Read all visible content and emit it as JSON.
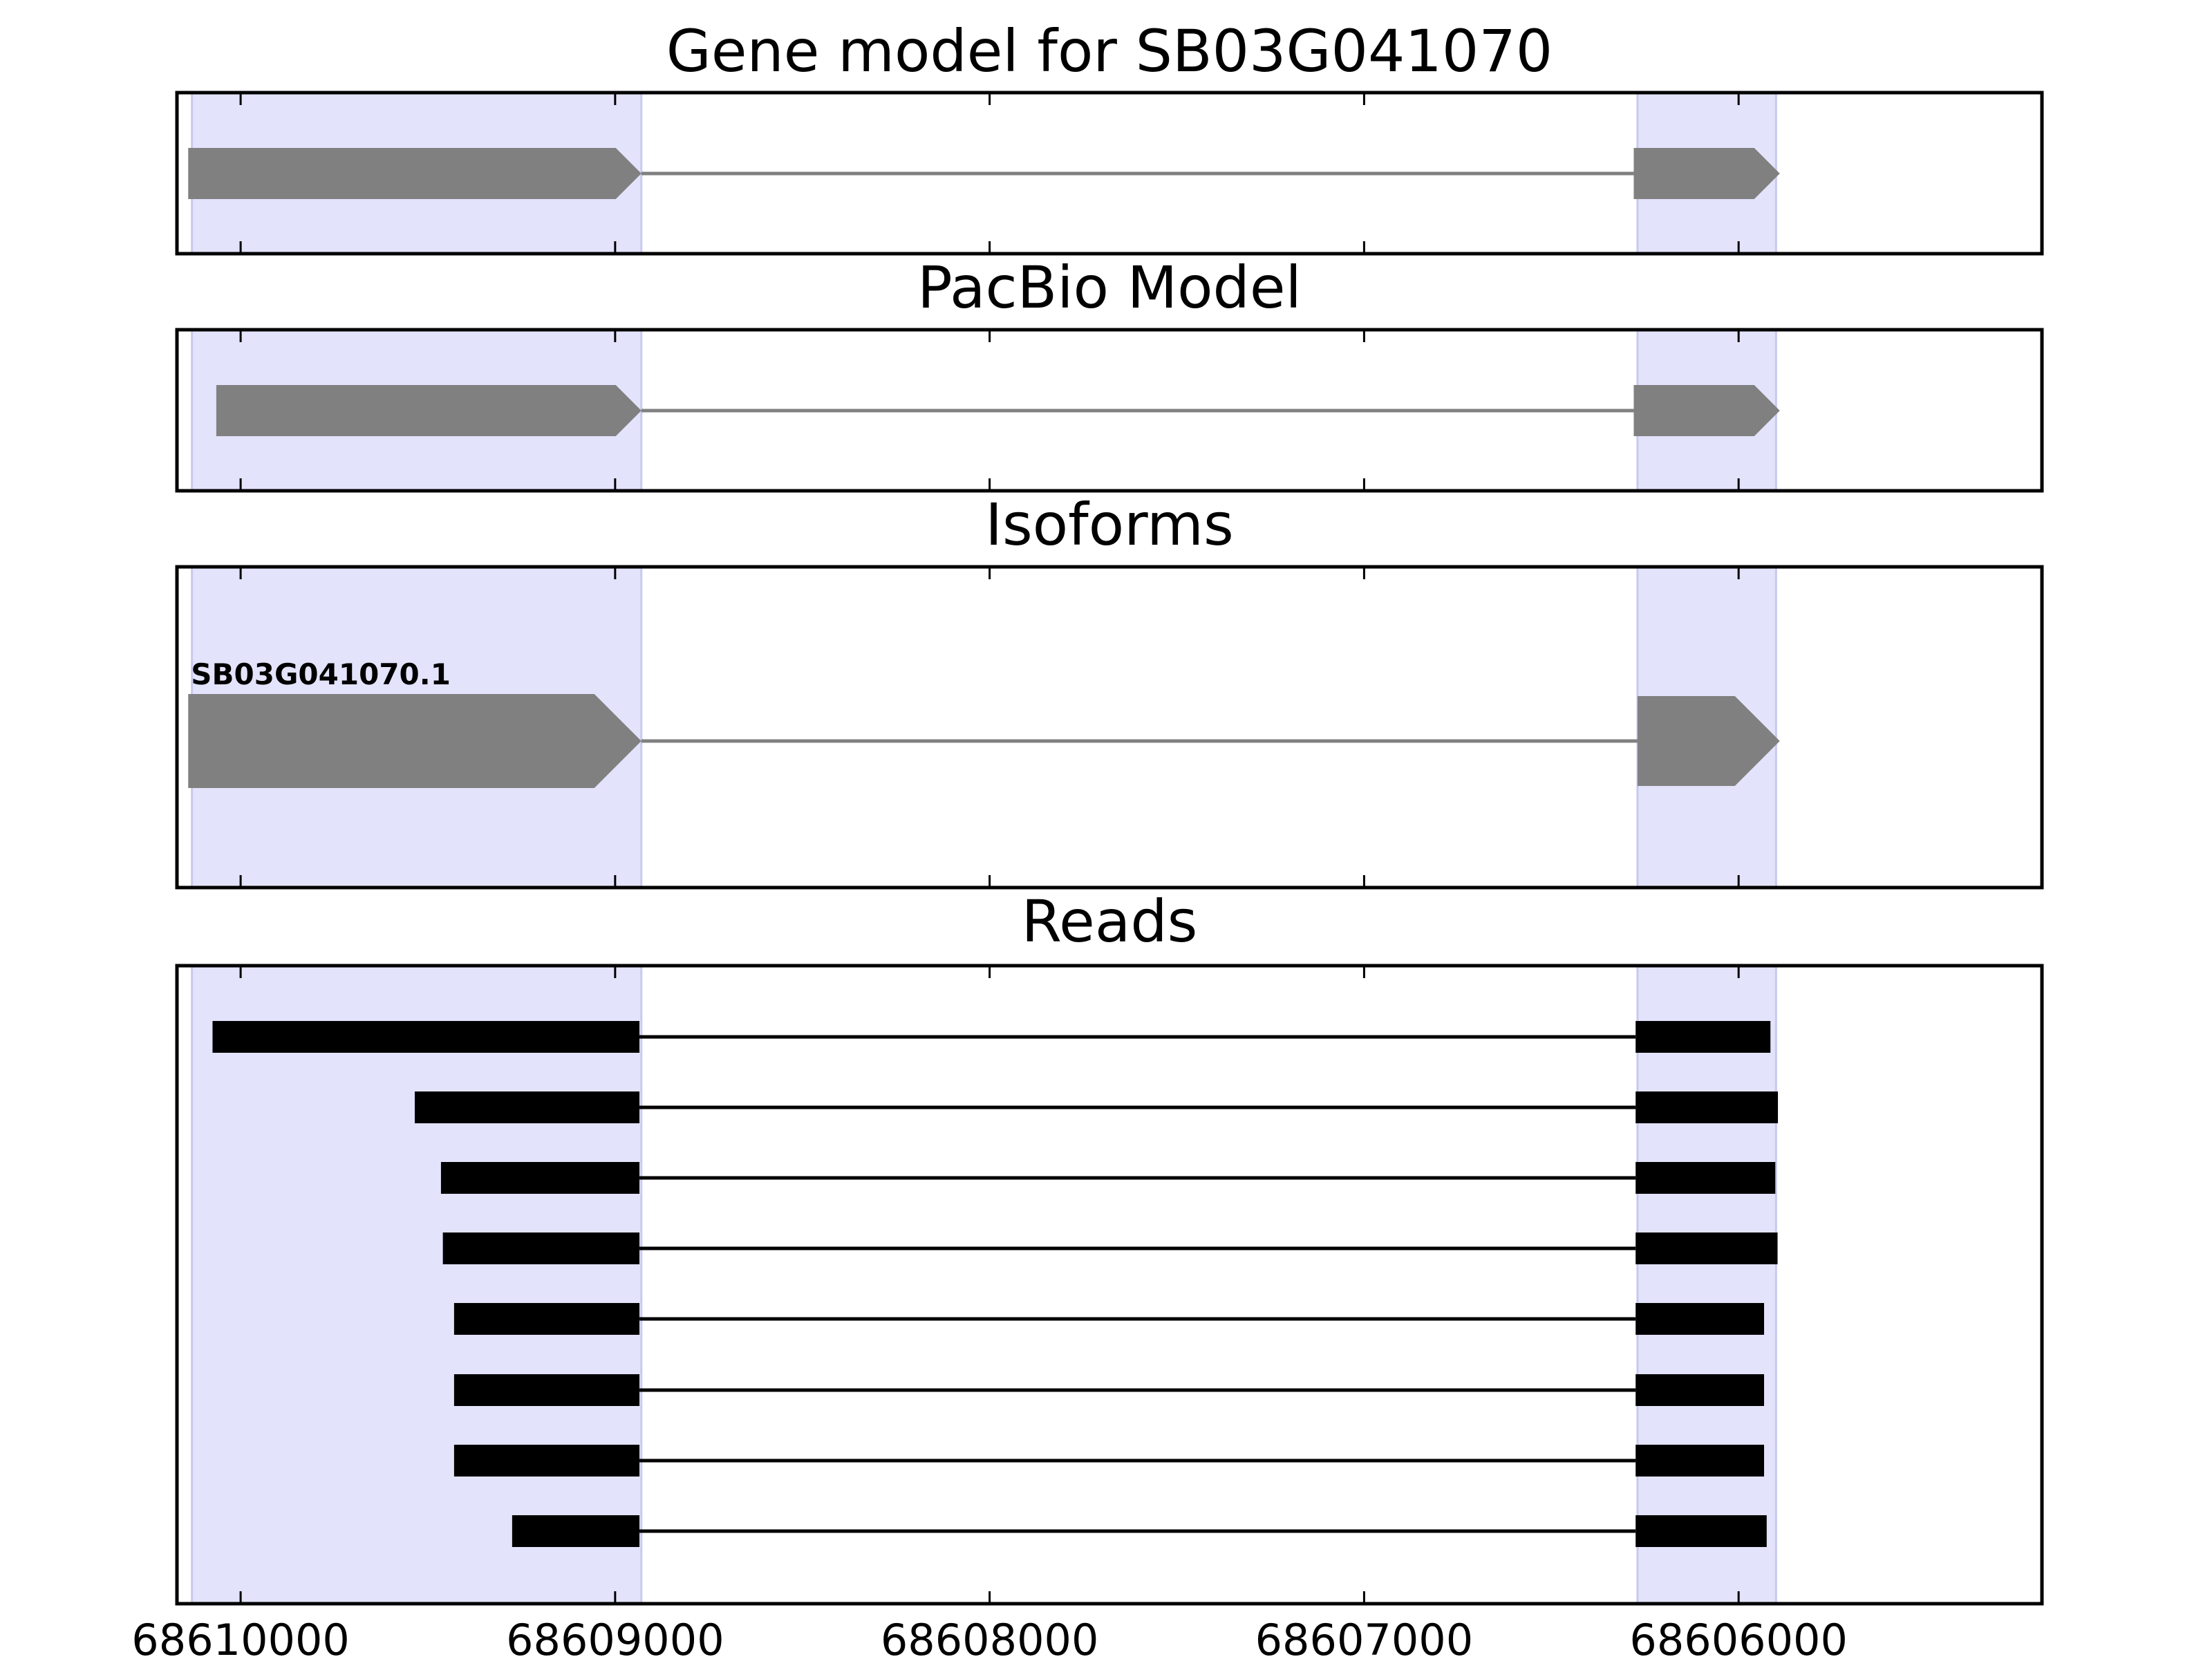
{
  "figure": {
    "x_axis": {
      "range": [
        68610170,
        68605190
      ],
      "reversed": true,
      "ticks": [
        68610000,
        68609000,
        68608000,
        68607000,
        68606000
      ],
      "tick_labels": [
        "68610000",
        "68609000",
        "68608000",
        "68607000",
        "68606000"
      ]
    },
    "highlight_regions": [
      [
        68610130,
        68608930
      ],
      [
        68606270,
        68605900
      ]
    ],
    "colors": {
      "highlight": "#e3e3fc",
      "highlight_edge": "#c9c9ef",
      "model_fill": "#808080",
      "read_fill": "#000000",
      "frame": "#000000"
    },
    "panels": [
      {
        "id": "gene-model",
        "title": "Gene model for SB03G041070",
        "strand": "minus",
        "exons": [
          [
            68610140,
            68608930
          ],
          [
            68606280,
            68605890
          ]
        ],
        "label": ""
      },
      {
        "id": "pacbio-model",
        "title": "PacBio Model",
        "strand": "minus",
        "exons": [
          [
            68610065,
            68608930
          ],
          [
            68606280,
            68605890
          ]
        ],
        "label": ""
      },
      {
        "id": "isoforms",
        "title": "Isoforms",
        "strand": "minus",
        "exons": [
          [
            68610140,
            68608930
          ],
          [
            68606270,
            68605890
          ]
        ],
        "label": "SB03G041070.1"
      },
      {
        "id": "reads",
        "title": "Reads",
        "reads": [
          {
            "exons": [
              [
                68610075,
                68608935
              ],
              [
                68606275,
                68605915
              ]
            ]
          },
          {
            "exons": [
              [
                68609535,
                68608935
              ],
              [
                68606275,
                68605895
              ]
            ]
          },
          {
            "exons": [
              [
                68609465,
                68608935
              ],
              [
                68606275,
                68605902
              ]
            ]
          },
          {
            "exons": [
              [
                68609460,
                68608935
              ],
              [
                68606275,
                68605896
              ]
            ]
          },
          {
            "exons": [
              [
                68609430,
                68608935
              ],
              [
                68606275,
                68605932
              ]
            ]
          },
          {
            "exons": [
              [
                68609430,
                68608935
              ],
              [
                68606275,
                68605932
              ]
            ]
          },
          {
            "exons": [
              [
                68609430,
                68608935
              ],
              [
                68606275,
                68605932
              ]
            ]
          },
          {
            "exons": [
              [
                68609275,
                68608935
              ],
              [
                68606275,
                68605925
              ]
            ]
          }
        ]
      }
    ]
  }
}
